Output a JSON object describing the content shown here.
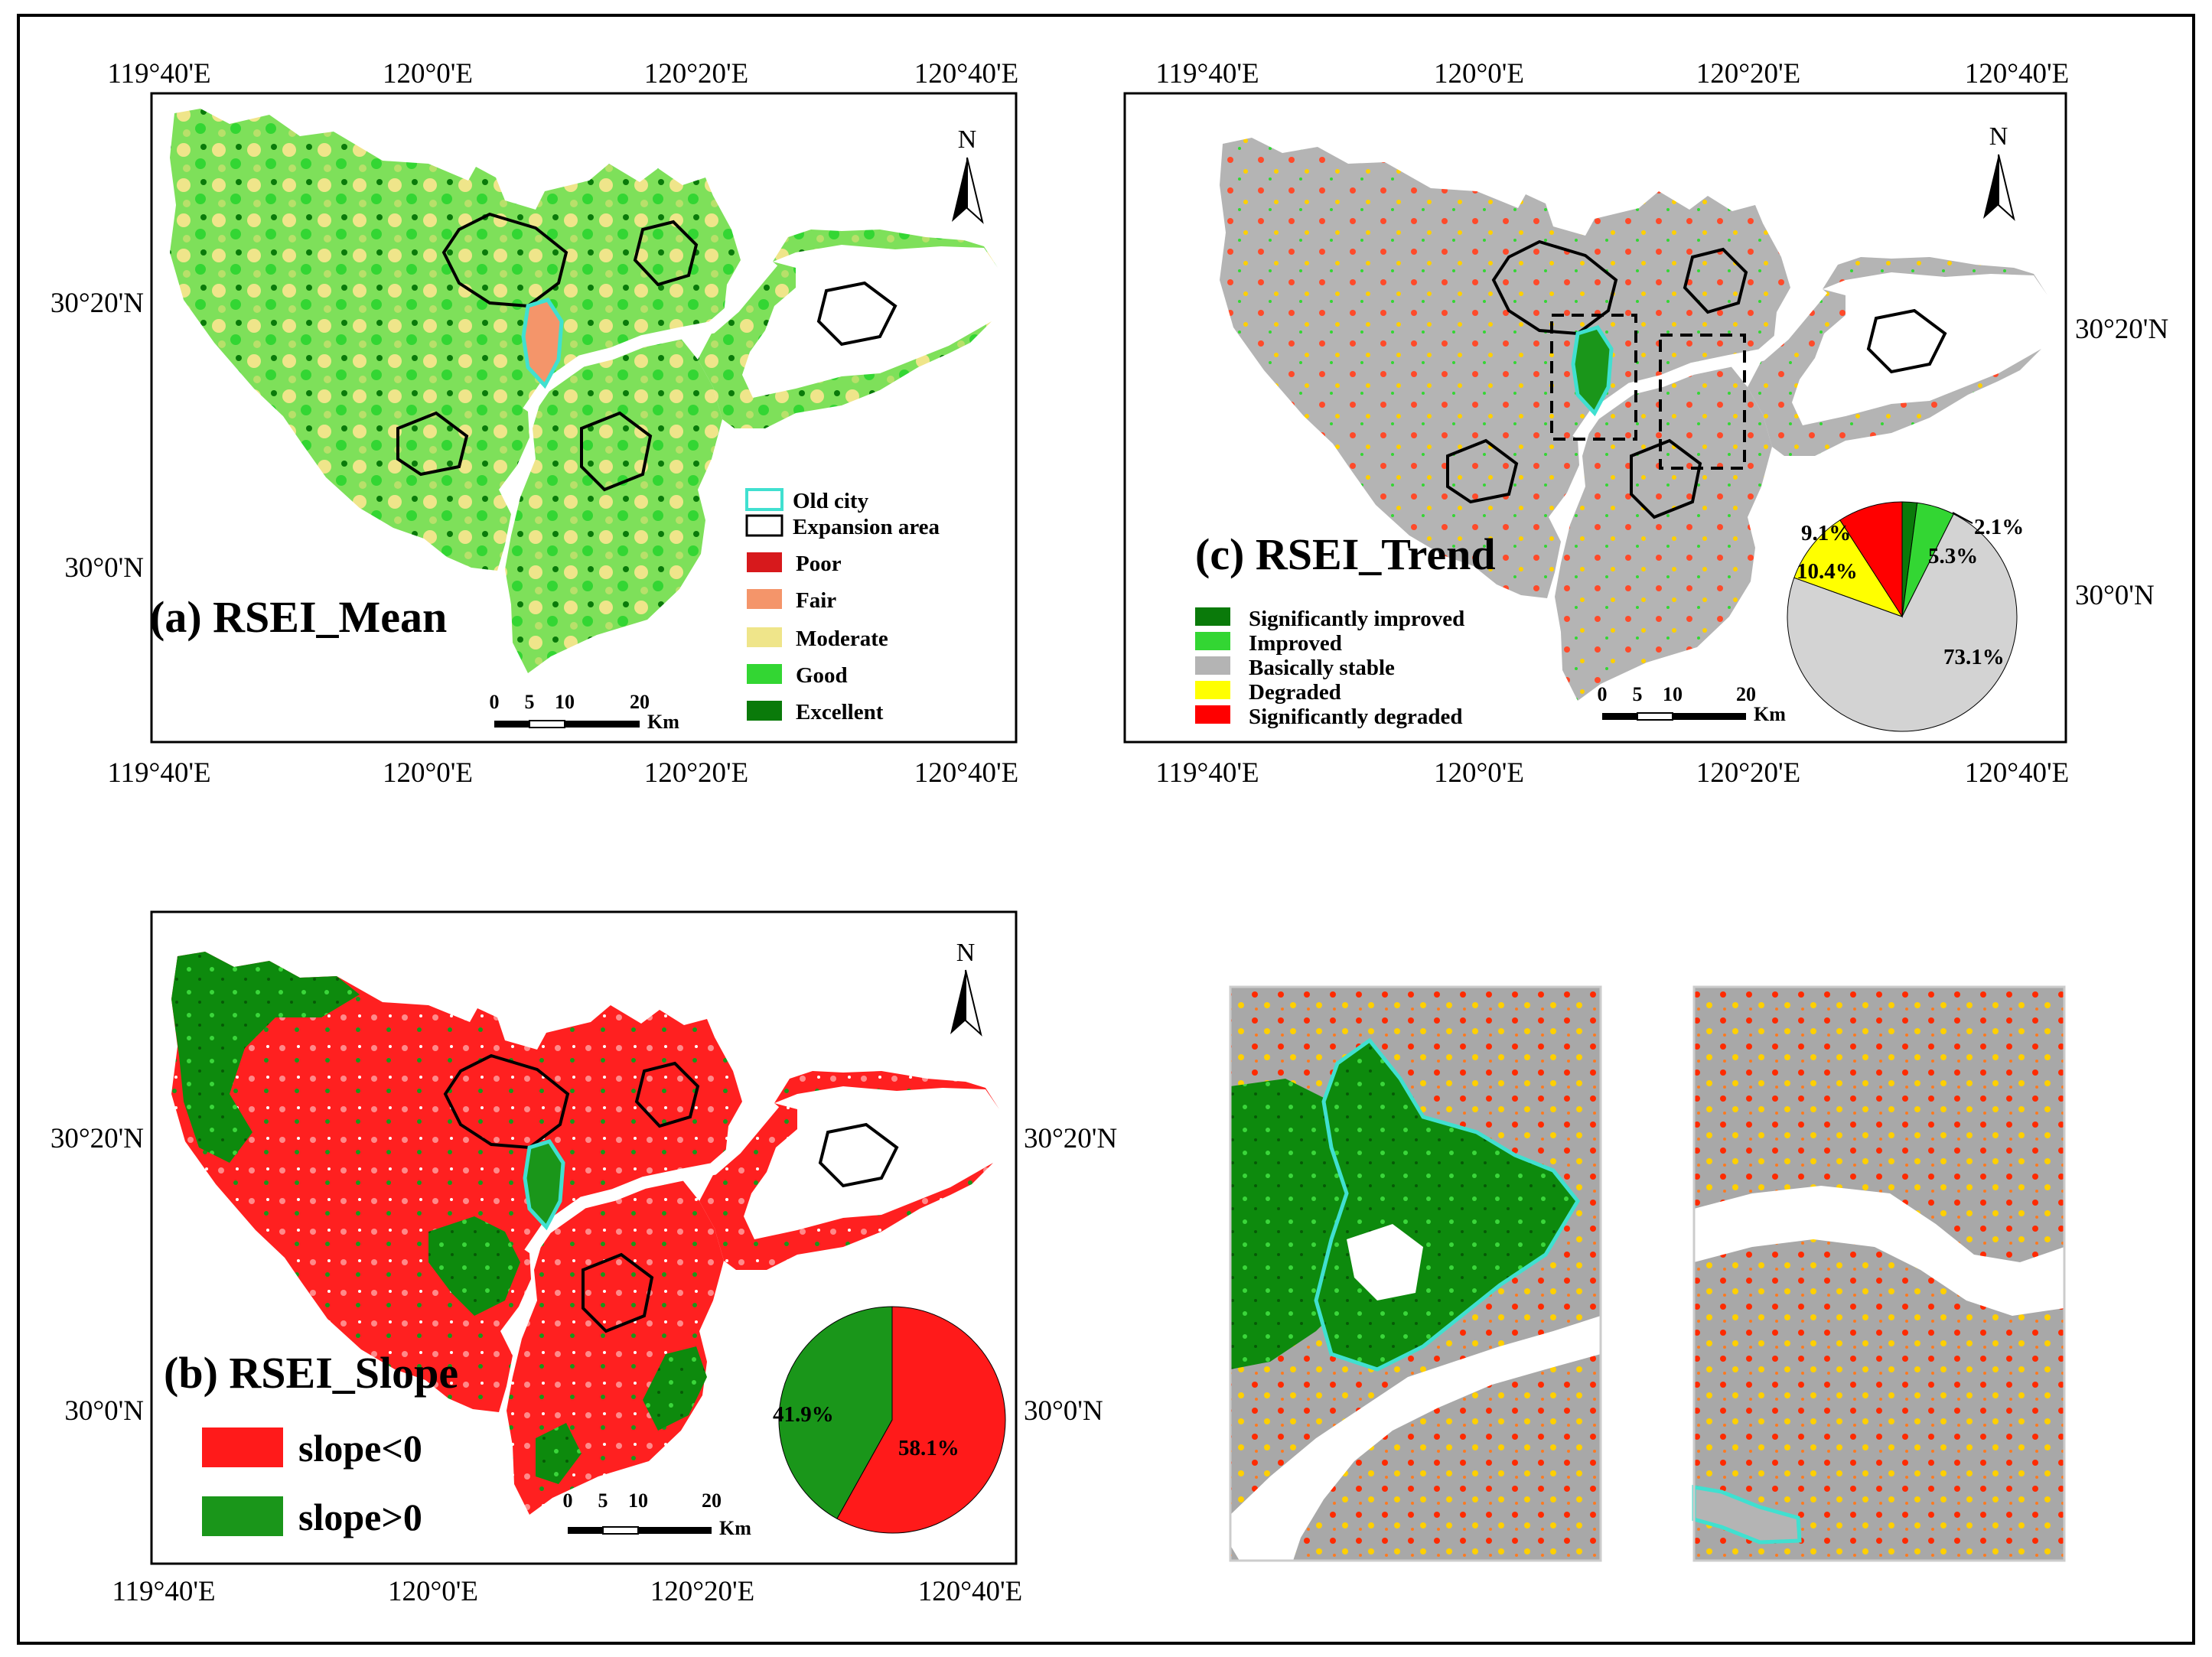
{
  "figure": {
    "panel_a": {
      "title": "(a) RSEI_Mean",
      "top_lon": [
        "119°40'E",
        "120°0'E",
        "120°20'E",
        "120°40'E"
      ],
      "bottom_lon": [
        "119°40'E",
        "120°0'E",
        "120°20'E",
        "120°40'E"
      ],
      "left_lat": [
        "30°20'N",
        "30°0'N"
      ],
      "north": "N",
      "legend": [
        {
          "label": "Old city",
          "color": "#40e0d0",
          "kind": "outline"
        },
        {
          "label": "Expansion area",
          "color": "#000000",
          "kind": "outline"
        },
        {
          "label": "Poor",
          "color": "#d7191c",
          "kind": "fill"
        },
        {
          "label": "Fair",
          "color": "#f4956a",
          "kind": "fill"
        },
        {
          "label": "Moderate",
          "color": "#efe58a",
          "kind": "fill"
        },
        {
          "label": "Good",
          "color": "#33d633",
          "kind": "fill"
        },
        {
          "label": "Excellent",
          "color": "#0a7a0a",
          "kind": "fill"
        }
      ],
      "scale": {
        "ticks": [
          "0",
          "5",
          "10",
          "20"
        ],
        "unit": "Km"
      }
    },
    "panel_b": {
      "title": "(b) RSEI_Slope",
      "bottom_lon": [
        "119°40'E",
        "120°0'E",
        "120°20'E",
        "120°40'E"
      ],
      "left_lat": [
        "30°20'N",
        "30°0'N"
      ],
      "right_lat": [
        "30°20'N",
        "30°0'N"
      ],
      "north": "N",
      "legend": [
        {
          "label": "slope<0",
          "color": "#ff1a1a"
        },
        {
          "label": "slope>0",
          "color": "#1a961a"
        }
      ],
      "scale": {
        "ticks": [
          "0",
          "5",
          "10",
          "20"
        ],
        "unit": "Km"
      },
      "pie": [
        {
          "label": "58.1%",
          "value": 58.1,
          "color": "#ff1a1a"
        },
        {
          "label": "41.9%",
          "value": 41.9,
          "color": "#1a961a"
        }
      ]
    },
    "panel_c": {
      "title": "(c) RSEI_Trend",
      "top_lon": [
        "119°40'E",
        "120°0'E",
        "120°20'E",
        "120°40'E"
      ],
      "bottom_lon": [
        "119°40'E",
        "120°0'E",
        "120°20'E",
        "120°40'E"
      ],
      "right_lat": [
        "30°20'N",
        "30°0'N"
      ],
      "north": "N",
      "legend": [
        {
          "label": "Significantly improved",
          "color": "#0a7a0a"
        },
        {
          "label": "Improved",
          "color": "#33d633"
        },
        {
          "label": "Basically stable",
          "color": "#b4b4b4"
        },
        {
          "label": "Degraded",
          "color": "#ffff00"
        },
        {
          "label": "Significantly degraded",
          "color": "#ff0000"
        }
      ],
      "scale": {
        "ticks": [
          "0",
          "5",
          "10",
          "20"
        ],
        "unit": "Km"
      },
      "pie": [
        {
          "label": "2.1%",
          "value": 2.1,
          "color": "#0a7a0a"
        },
        {
          "label": "5.3%",
          "value": 5.3,
          "color": "#33d633"
        },
        {
          "label": "73.1%",
          "value": 73.1,
          "color": "#d3d3d3"
        },
        {
          "label": "10.4%",
          "value": 10.4,
          "color": "#ffff00"
        },
        {
          "label": "9.1%",
          "value": 9.1,
          "color": "#ff0000"
        }
      ]
    }
  }
}
